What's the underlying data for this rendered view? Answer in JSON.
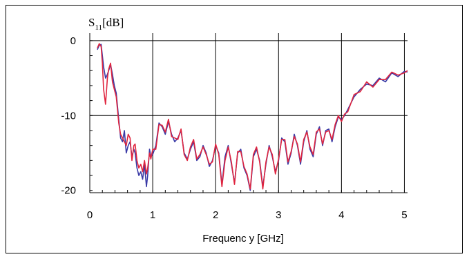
{
  "chart_data": {
    "type": "line",
    "ylabel": "S11[dB]",
    "ylabel_main": "S",
    "ylabel_sub": "11",
    "ylabel_unit": "[dB]",
    "xlabel": "Frequenc y [GHz]",
    "xlim": [
      0,
      5.05
    ],
    "ylim": [
      -20.3,
      1.0
    ],
    "x_ticks": [
      0,
      1,
      2,
      3,
      4,
      5
    ],
    "y_ticks": [
      0,
      -10,
      -20
    ],
    "grid": true,
    "colors": {
      "series_a": "#3a3aa6",
      "series_b": "#e0253f",
      "grid": "#000000"
    },
    "series": [
      {
        "color": "#3a3aa6",
        "x": [
          0.12,
          0.15,
          0.18,
          0.2,
          0.22,
          0.25,
          0.28,
          0.3,
          0.33,
          0.36,
          0.39,
          0.42,
          0.46,
          0.49,
          0.52,
          0.55,
          0.58,
          0.61,
          0.64,
          0.67,
          0.7,
          0.72,
          0.75,
          0.78,
          0.81,
          0.84,
          0.87,
          0.9,
          0.92,
          0.95,
          0.97,
          1.0,
          1.05,
          1.1,
          1.15,
          1.2,
          1.25,
          1.3,
          1.35,
          1.4,
          1.45,
          1.5,
          1.55,
          1.6,
          1.65,
          1.7,
          1.75,
          1.8,
          1.85,
          1.9,
          1.95,
          2.0,
          2.05,
          2.1,
          2.15,
          2.2,
          2.25,
          2.3,
          2.35,
          2.4,
          2.45,
          2.5,
          2.55,
          2.6,
          2.65,
          2.7,
          2.75,
          2.8,
          2.85,
          2.9,
          2.95,
          3.0,
          3.05,
          3.1,
          3.15,
          3.2,
          3.25,
          3.3,
          3.35,
          3.4,
          3.45,
          3.5,
          3.55,
          3.6,
          3.65,
          3.7,
          3.75,
          3.8,
          3.85,
          3.9,
          3.95,
          4.0,
          4.05,
          4.1,
          4.2,
          4.3,
          4.4,
          4.5,
          4.6,
          4.7,
          4.8,
          4.9,
          5.0,
          5.05
        ],
        "y": [
          -1.2,
          -0.6,
          -0.5,
          -2.0,
          -3.5,
          -5.0,
          -4.5,
          -4.0,
          -3.2,
          -4.5,
          -6.0,
          -7.0,
          -10.5,
          -13.0,
          -13.5,
          -12.0,
          -15.0,
          -14.0,
          -13.5,
          -15.5,
          -14.5,
          -15.0,
          -17.0,
          -18.0,
          -17.5,
          -18.5,
          -16.5,
          -19.5,
          -18.0,
          -14.5,
          -15.5,
          -15.2,
          -14.0,
          -11.0,
          -11.5,
          -12.5,
          -10.8,
          -12.5,
          -13.5,
          -13.0,
          -12.0,
          -15.0,
          -15.8,
          -14.5,
          -13.5,
          -16.0,
          -15.5,
          -14.0,
          -15.0,
          -16.8,
          -16.0,
          -14.0,
          -15.0,
          -19.2,
          -15.5,
          -14.0,
          -16.5,
          -19.0,
          -15.0,
          -14.5,
          -17.0,
          -18.0,
          -20.0,
          -15.5,
          -14.5,
          -16.0,
          -19.5,
          -16.5,
          -14.0,
          -15.5,
          -17.5,
          -16.0,
          -13.0,
          -13.5,
          -16.5,
          -15.0,
          -12.5,
          -14.0,
          -16.5,
          -13.5,
          -12.0,
          -14.5,
          -15.5,
          -12.5,
          -11.5,
          -14.0,
          -12.0,
          -11.8,
          -13.5,
          -11.5,
          -10.2,
          -10.5,
          -10.0,
          -9.2,
          -7.5,
          -6.5,
          -5.8,
          -6.0,
          -5.0,
          -5.5,
          -4.3,
          -4.8,
          -4.1,
          -4.2
        ]
      },
      {
        "color": "#e0253f",
        "x": [
          0.12,
          0.15,
          0.18,
          0.2,
          0.22,
          0.25,
          0.28,
          0.3,
          0.33,
          0.36,
          0.39,
          0.42,
          0.46,
          0.49,
          0.52,
          0.55,
          0.58,
          0.61,
          0.64,
          0.67,
          0.7,
          0.72,
          0.75,
          0.78,
          0.81,
          0.84,
          0.87,
          0.9,
          0.92,
          0.95,
          0.97,
          1.0,
          1.05,
          1.1,
          1.15,
          1.2,
          1.25,
          1.3,
          1.35,
          1.4,
          1.45,
          1.5,
          1.55,
          1.6,
          1.65,
          1.7,
          1.75,
          1.8,
          1.85,
          1.9,
          1.95,
          2.0,
          2.05,
          2.1,
          2.15,
          2.2,
          2.25,
          2.3,
          2.35,
          2.4,
          2.45,
          2.5,
          2.55,
          2.6,
          2.65,
          2.7,
          2.75,
          2.8,
          2.85,
          2.9,
          2.95,
          3.0,
          3.05,
          3.1,
          3.15,
          3.2,
          3.25,
          3.3,
          3.35,
          3.4,
          3.45,
          3.5,
          3.55,
          3.6,
          3.65,
          3.7,
          3.75,
          3.8,
          3.85,
          3.9,
          3.95,
          4.0,
          4.05,
          4.1,
          4.2,
          4.3,
          4.4,
          4.5,
          4.6,
          4.7,
          4.8,
          4.9,
          5.0,
          5.05
        ],
        "y": [
          -1.0,
          -0.4,
          -0.8,
          -3.0,
          -6.5,
          -8.5,
          -5.0,
          -3.8,
          -3.0,
          -5.5,
          -6.5,
          -7.5,
          -11.0,
          -12.5,
          -13.0,
          -13.5,
          -14.0,
          -12.5,
          -13.0,
          -16.0,
          -14.0,
          -13.8,
          -16.0,
          -17.0,
          -16.5,
          -17.5,
          -16.0,
          -17.8,
          -17.0,
          -15.0,
          -15.8,
          -14.5,
          -14.5,
          -11.2,
          -11.3,
          -12.2,
          -10.5,
          -12.8,
          -13.0,
          -13.2,
          -11.8,
          -15.2,
          -16.0,
          -14.2,
          -13.2,
          -15.8,
          -15.2,
          -14.2,
          -15.2,
          -16.5,
          -16.2,
          -13.8,
          -15.2,
          -19.5,
          -16.0,
          -14.2,
          -16.2,
          -19.2,
          -14.8,
          -14.8,
          -16.8,
          -17.8,
          -19.8,
          -15.2,
          -14.2,
          -16.2,
          -19.8,
          -16.2,
          -14.2,
          -15.2,
          -17.8,
          -15.8,
          -13.2,
          -13.2,
          -16.2,
          -14.8,
          -12.8,
          -13.8,
          -16.2,
          -13.2,
          -12.2,
          -14.2,
          -15.2,
          -12.2,
          -11.8,
          -13.8,
          -12.2,
          -12.0,
          -13.2,
          -11.2,
          -10.0,
          -10.8,
          -9.8,
          -9.5,
          -7.2,
          -6.8,
          -5.5,
          -6.2,
          -5.2,
          -5.2,
          -4.2,
          -4.6,
          -4.3,
          -4.0
        ]
      }
    ]
  }
}
